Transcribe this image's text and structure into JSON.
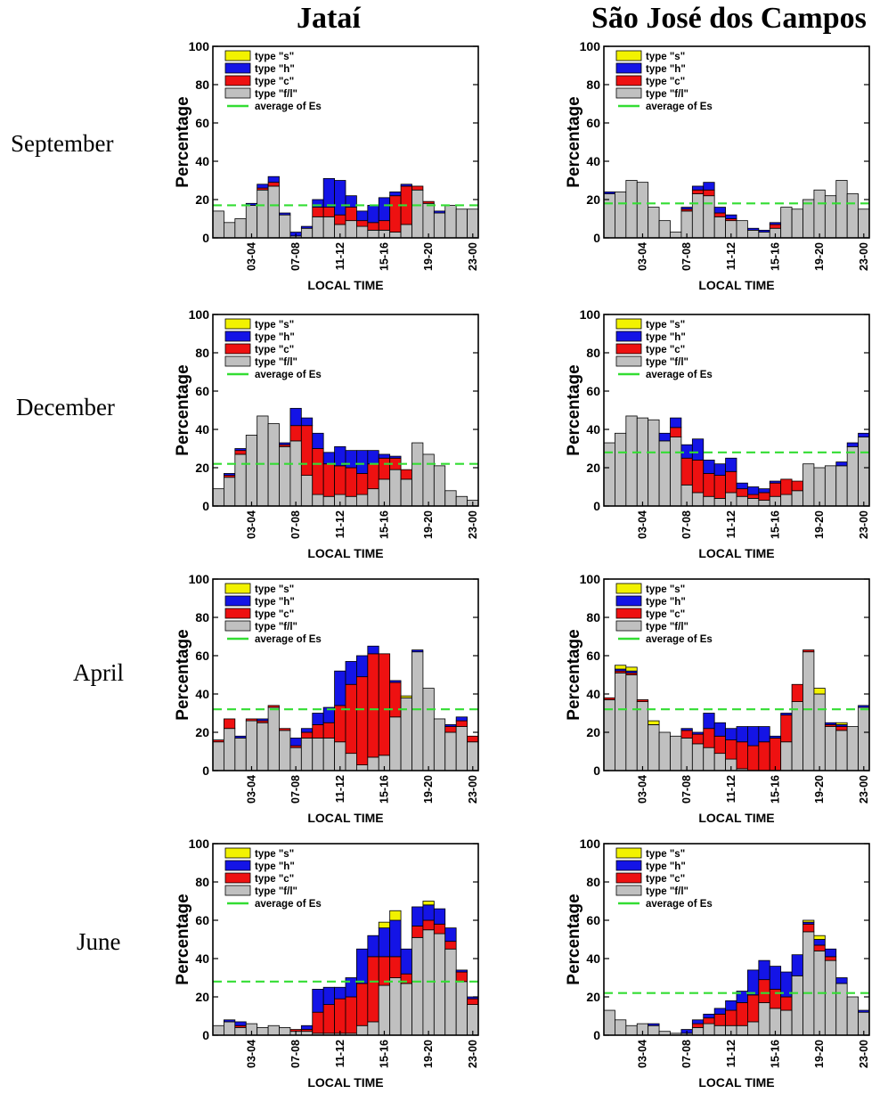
{
  "colors": {
    "s": "#f2f200",
    "h": "#1414e6",
    "c": "#ee1111",
    "fl": "#c0c0c0",
    "avg": "#33dd33"
  },
  "chart_data": [
    {
      "type": "bar",
      "station": "Jataí",
      "month": "September",
      "avg": 17,
      "ylabel": "Percentage",
      "xlabel": "LOCAL TIME",
      "ylim": [
        0,
        100
      ],
      "yticks": [
        "0",
        "20",
        "40",
        "60",
        "80",
        "100"
      ],
      "xticks": [
        {
          "label": "03-04",
          "index": 3
        },
        {
          "label": "07-08",
          "index": 7
        },
        {
          "label": "11-12",
          "index": 11
        },
        {
          "label": "15-16",
          "index": 15
        },
        {
          "label": "19-20",
          "index": 19
        },
        {
          "label": "23-00",
          "index": 23
        }
      ],
      "legend": [
        "type \"s\"",
        "type \"h\"",
        "type \"c\"",
        "type \"f/l\"",
        "average of Es"
      ],
      "series": {
        "fl": [
          14,
          8,
          10,
          17,
          25,
          27,
          12,
          1,
          5,
          11,
          11,
          7,
          9,
          6,
          4,
          4,
          3,
          7,
          25,
          18,
          13,
          17,
          15,
          15
        ],
        "c": [
          0,
          0,
          0,
          0,
          1,
          2,
          0,
          0,
          0,
          5,
          5,
          5,
          7,
          3,
          4,
          5,
          19,
          20,
          2,
          1,
          0,
          0,
          0,
          0
        ],
        "h": [
          0,
          0,
          0,
          1,
          2,
          3,
          1,
          2,
          1,
          4,
          15,
          18,
          6,
          5,
          9,
          12,
          2,
          1,
          0,
          0,
          1,
          0,
          0,
          0
        ],
        "s": [
          0,
          0,
          0,
          0,
          0,
          0,
          0,
          0,
          0,
          0,
          0,
          0,
          0,
          0,
          0,
          0,
          0,
          0,
          0,
          0,
          0,
          0,
          0,
          0
        ]
      }
    },
    {
      "type": "bar",
      "station": "São José dos Campos",
      "month": "September",
      "avg": 18,
      "ylabel": "Percentage",
      "xlabel": "LOCAL TIME",
      "ylim": [
        0,
        100
      ],
      "yticks": [
        "0",
        "20",
        "40",
        "60",
        "80",
        "100"
      ],
      "xticks": [
        {
          "label": "03-04",
          "index": 3
        },
        {
          "label": "07-08",
          "index": 7
        },
        {
          "label": "11-12",
          "index": 11
        },
        {
          "label": "15-16",
          "index": 15
        },
        {
          "label": "19-20",
          "index": 19
        },
        {
          "label": "23-00",
          "index": 23
        }
      ],
      "legend": [
        "type \"s\"",
        "type \"h\"",
        "type \"c\"",
        "type \"f/l\"",
        "average of Es"
      ],
      "series": {
        "fl": [
          23,
          24,
          30,
          29,
          16,
          9,
          3,
          14,
          23,
          22,
          11,
          9,
          9,
          4,
          3,
          5,
          16,
          15,
          20,
          25,
          22,
          30,
          23,
          15
        ],
        "c": [
          0,
          0,
          0,
          0,
          0,
          0,
          0,
          1,
          2,
          3,
          2,
          1,
          0,
          0,
          0,
          2,
          0,
          0,
          0,
          0,
          0,
          0,
          0,
          0
        ],
        "h": [
          1,
          0,
          0,
          0,
          0,
          0,
          0,
          1,
          2,
          4,
          3,
          2,
          0,
          1,
          1,
          1,
          0,
          0,
          0,
          0,
          0,
          0,
          0,
          0
        ],
        "s": [
          0,
          0,
          0,
          0,
          0,
          0,
          0,
          0,
          0,
          0,
          0,
          0,
          0,
          0,
          0,
          0,
          0,
          0,
          0,
          0,
          0,
          0,
          0,
          0
        ]
      }
    },
    {
      "type": "bar",
      "station": "Jataí",
      "month": "December",
      "avg": 22,
      "ylabel": "Percentage",
      "xlabel": "LOCAL TIME",
      "ylim": [
        0,
        100
      ],
      "yticks": [
        "0",
        "20",
        "40",
        "60",
        "80",
        "100"
      ],
      "xticks": [
        {
          "label": "03-04",
          "index": 3
        },
        {
          "label": "07-08",
          "index": 7
        },
        {
          "label": "11-12",
          "index": 11
        },
        {
          "label": "15-16",
          "index": 15
        },
        {
          "label": "19-20",
          "index": 19
        },
        {
          "label": "23-00",
          "index": 23
        }
      ],
      "legend": [
        "type \"s\"",
        "type \"h\"",
        "type \"c\"",
        "type \"f/l\"",
        "average of Es"
      ],
      "series": {
        "fl": [
          9,
          15,
          27,
          37,
          47,
          43,
          31,
          34,
          16,
          6,
          5,
          6,
          5,
          6,
          9,
          14,
          19,
          14,
          33,
          27,
          21,
          8,
          5,
          3
        ],
        "c": [
          0,
          1,
          2,
          0,
          0,
          0,
          1,
          8,
          26,
          24,
          17,
          15,
          15,
          11,
          13,
          11,
          6,
          5,
          0,
          0,
          0,
          0,
          0,
          0
        ],
        "h": [
          0,
          1,
          1,
          0,
          0,
          0,
          1,
          9,
          4,
          8,
          6,
          10,
          9,
          12,
          7,
          2,
          1,
          0,
          0,
          0,
          0,
          0,
          0,
          0
        ],
        "s": [
          0,
          0,
          0,
          0,
          0,
          0,
          0,
          0,
          0,
          0,
          0,
          0,
          0,
          0,
          0,
          0,
          0,
          0,
          0,
          0,
          0,
          0,
          0,
          0
        ]
      }
    },
    {
      "type": "bar",
      "station": "São José dos Campos",
      "month": "December",
      "avg": 28,
      "ylabel": "Percentage",
      "xlabel": "LOCAL TIME",
      "ylim": [
        0,
        100
      ],
      "yticks": [
        "0",
        "20",
        "40",
        "60",
        "80",
        "100"
      ],
      "xticks": [
        {
          "label": "03-04",
          "index": 3
        },
        {
          "label": "07-08",
          "index": 7
        },
        {
          "label": "11-12",
          "index": 11
        },
        {
          "label": "15-16",
          "index": 15
        },
        {
          "label": "19-20",
          "index": 19
        },
        {
          "label": "23-00",
          "index": 23
        }
      ],
      "legend": [
        "type \"s\"",
        "type \"h\"",
        "type \"c\"",
        "type \"f/l\"",
        "average of Es"
      ],
      "series": {
        "fl": [
          33,
          38,
          47,
          46,
          45,
          34,
          36,
          11,
          7,
          5,
          4,
          7,
          5,
          4,
          3,
          5,
          6,
          8,
          22,
          20,
          21,
          21,
          31,
          36
        ],
        "c": [
          0,
          0,
          0,
          0,
          0,
          0,
          5,
          14,
          17,
          12,
          12,
          11,
          4,
          2,
          4,
          7,
          8,
          5,
          0,
          0,
          0,
          0,
          0,
          0
        ],
        "h": [
          0,
          0,
          0,
          0,
          0,
          4,
          5,
          7,
          11,
          7,
          6,
          7,
          3,
          4,
          2,
          1,
          0,
          0,
          0,
          0,
          0,
          2,
          2,
          2
        ],
        "s": [
          0,
          0,
          0,
          0,
          0,
          0,
          0,
          0,
          0,
          0,
          0,
          0,
          0,
          0,
          0,
          0,
          0,
          0,
          0,
          0,
          0,
          0,
          0,
          0
        ]
      }
    },
    {
      "type": "bar",
      "station": "Jataí",
      "month": "April",
      "avg": 32,
      "ylabel": "Percentage",
      "xlabel": "LOCAL TIME",
      "ylim": [
        0,
        100
      ],
      "yticks": [
        "0",
        "20",
        "40",
        "60",
        "80",
        "100"
      ],
      "xticks": [
        {
          "label": "03-04",
          "index": 3
        },
        {
          "label": "07-08",
          "index": 7
        },
        {
          "label": "11-12",
          "index": 11
        },
        {
          "label": "15-16",
          "index": 15
        },
        {
          "label": "19-20",
          "index": 19
        },
        {
          "label": "23-00",
          "index": 23
        }
      ],
      "legend": [
        "type \"s\"",
        "type \"h\"",
        "type \"c\"",
        "type \"f/l\"",
        "average of Es"
      ],
      "series": {
        "fl": [
          15,
          22,
          17,
          26,
          25,
          33,
          21,
          12,
          17,
          17,
          17,
          15,
          9,
          3,
          7,
          8,
          28,
          38,
          62,
          43,
          27,
          20,
          23,
          15
        ],
        "c": [
          1,
          5,
          0,
          1,
          1,
          1,
          1,
          1,
          3,
          7,
          8,
          19,
          36,
          46,
          54,
          53,
          18,
          0,
          0,
          0,
          0,
          3,
          3,
          3
        ],
        "h": [
          0,
          0,
          1,
          0,
          1,
          0,
          0,
          4,
          2,
          6,
          8,
          18,
          12,
          11,
          4,
          0,
          1,
          0,
          1,
          0,
          0,
          1,
          2,
          0
        ],
        "s": [
          0,
          0,
          0,
          0,
          0,
          0,
          0,
          0,
          0,
          0,
          0,
          0,
          0,
          0,
          0,
          0,
          0,
          1,
          0,
          0,
          0,
          0,
          0,
          0
        ]
      }
    },
    {
      "type": "bar",
      "station": "São José dos Campos",
      "month": "April",
      "avg": 32,
      "ylabel": "Percentage",
      "xlabel": "LOCAL TIME",
      "ylim": [
        0,
        100
      ],
      "yticks": [
        "0",
        "20",
        "40",
        "60",
        "80",
        "100"
      ],
      "xticks": [
        {
          "label": "03-04",
          "index": 3
        },
        {
          "label": "07-08",
          "index": 7
        },
        {
          "label": "11-12",
          "index": 11
        },
        {
          "label": "15-16",
          "index": 15
        },
        {
          "label": "19-20",
          "index": 19
        },
        {
          "label": "23-00",
          "index": 23
        }
      ],
      "legend": [
        "type \"s\"",
        "type \"h\"",
        "type \"c\"",
        "type \"f/l\"",
        "average of Es"
      ],
      "series": {
        "fl": [
          37,
          51,
          50,
          36,
          24,
          20,
          18,
          17,
          14,
          12,
          9,
          6,
          1,
          0,
          0,
          0,
          15,
          36,
          62,
          40,
          23,
          21,
          23,
          33
        ],
        "c": [
          1,
          1,
          1,
          1,
          0,
          0,
          0,
          4,
          5,
          10,
          9,
          10,
          14,
          13,
          15,
          17,
          14,
          9,
          1,
          0,
          1,
          2,
          0,
          0
        ],
        "h": [
          0,
          1,
          1,
          0,
          0,
          0,
          0,
          1,
          1,
          8,
          7,
          6,
          8,
          10,
          8,
          1,
          1,
          0,
          0,
          0,
          1,
          1,
          0,
          1
        ],
        "s": [
          0,
          2,
          2,
          0,
          2,
          0,
          0,
          0,
          0,
          0,
          0,
          0,
          0,
          0,
          0,
          0,
          0,
          0,
          0,
          3,
          0,
          1,
          0,
          0
        ]
      }
    },
    {
      "type": "bar",
      "station": "Jataí",
      "month": "June",
      "avg": 28,
      "ylabel": "Percentage",
      "xlabel": "LOCAL TIME",
      "ylim": [
        0,
        100
      ],
      "yticks": [
        "0",
        "20",
        "40",
        "60",
        "80",
        "100"
      ],
      "xticks": [
        {
          "label": "03-04",
          "index": 3
        },
        {
          "label": "07-08",
          "index": 7
        },
        {
          "label": "11-12",
          "index": 11
        },
        {
          "label": "15-16",
          "index": 15
        },
        {
          "label": "19-20",
          "index": 19
        },
        {
          "label": "23-00",
          "index": 23
        }
      ],
      "legend": [
        "type \"s\"",
        "type \"h\"",
        "type \"c\"",
        "type \"f/l\"",
        "average of Es"
      ],
      "series": {
        "fl": [
          5,
          7,
          4,
          6,
          4,
          5,
          4,
          2,
          2,
          1,
          1,
          1,
          1,
          5,
          7,
          26,
          30,
          27,
          51,
          55,
          53,
          45,
          28,
          16
        ],
        "c": [
          0,
          0,
          1,
          0,
          0,
          0,
          0,
          1,
          1,
          11,
          15,
          18,
          19,
          22,
          34,
          15,
          11,
          5,
          6,
          5,
          5,
          4,
          5,
          3
        ],
        "h": [
          0,
          1,
          2,
          0,
          0,
          0,
          0,
          0,
          2,
          12,
          9,
          6,
          10,
          18,
          11,
          15,
          19,
          13,
          10,
          8,
          8,
          7,
          1,
          1
        ],
        "s": [
          0,
          0,
          0,
          0,
          0,
          0,
          0,
          0,
          0,
          0,
          0,
          0,
          0,
          0,
          0,
          3,
          5,
          0,
          0,
          2,
          0,
          0,
          0,
          0
        ]
      }
    },
    {
      "type": "bar",
      "station": "São José dos Campos",
      "month": "June",
      "avg": 22,
      "ylabel": "Percentage",
      "xlabel": "LOCAL TIME",
      "ylim": [
        0,
        100
      ],
      "yticks": [
        "0",
        "20",
        "40",
        "60",
        "80",
        "100"
      ],
      "xticks": [
        {
          "label": "03-04",
          "index": 3
        },
        {
          "label": "07-08",
          "index": 7
        },
        {
          "label": "11-12",
          "index": 11
        },
        {
          "label": "15-16",
          "index": 15
        },
        {
          "label": "19-20",
          "index": 19
        },
        {
          "label": "23-00",
          "index": 23
        }
      ],
      "legend": [
        "type \"s\"",
        "type \"h\"",
        "type \"c\"",
        "type \"f/l\"",
        "average of Es"
      ],
      "series": {
        "fl": [
          13,
          8,
          5,
          6,
          5,
          2,
          1,
          1,
          4,
          6,
          5,
          5,
          5,
          7,
          17,
          14,
          13,
          31,
          54,
          44,
          39,
          27,
          20,
          12
        ],
        "c": [
          0,
          0,
          0,
          0,
          0,
          0,
          0,
          0,
          2,
          3,
          6,
          8,
          12,
          14,
          12,
          10,
          7,
          0,
          4,
          3,
          2,
          0,
          0,
          0
        ],
        "h": [
          0,
          0,
          0,
          0,
          1,
          0,
          0,
          2,
          2,
          2,
          3,
          5,
          6,
          13,
          10,
          12,
          13,
          11,
          1,
          3,
          4,
          3,
          0,
          1
        ],
        "s": [
          0,
          0,
          0,
          0,
          0,
          0,
          0,
          0,
          0,
          0,
          0,
          0,
          0,
          0,
          0,
          0,
          0,
          0,
          1,
          2,
          0,
          0,
          0,
          0
        ]
      }
    }
  ],
  "page": {
    "col_titles": [
      "Jataí",
      "São José dos Campos"
    ],
    "row_labels": [
      "September",
      "December",
      "April",
      "June"
    ]
  }
}
